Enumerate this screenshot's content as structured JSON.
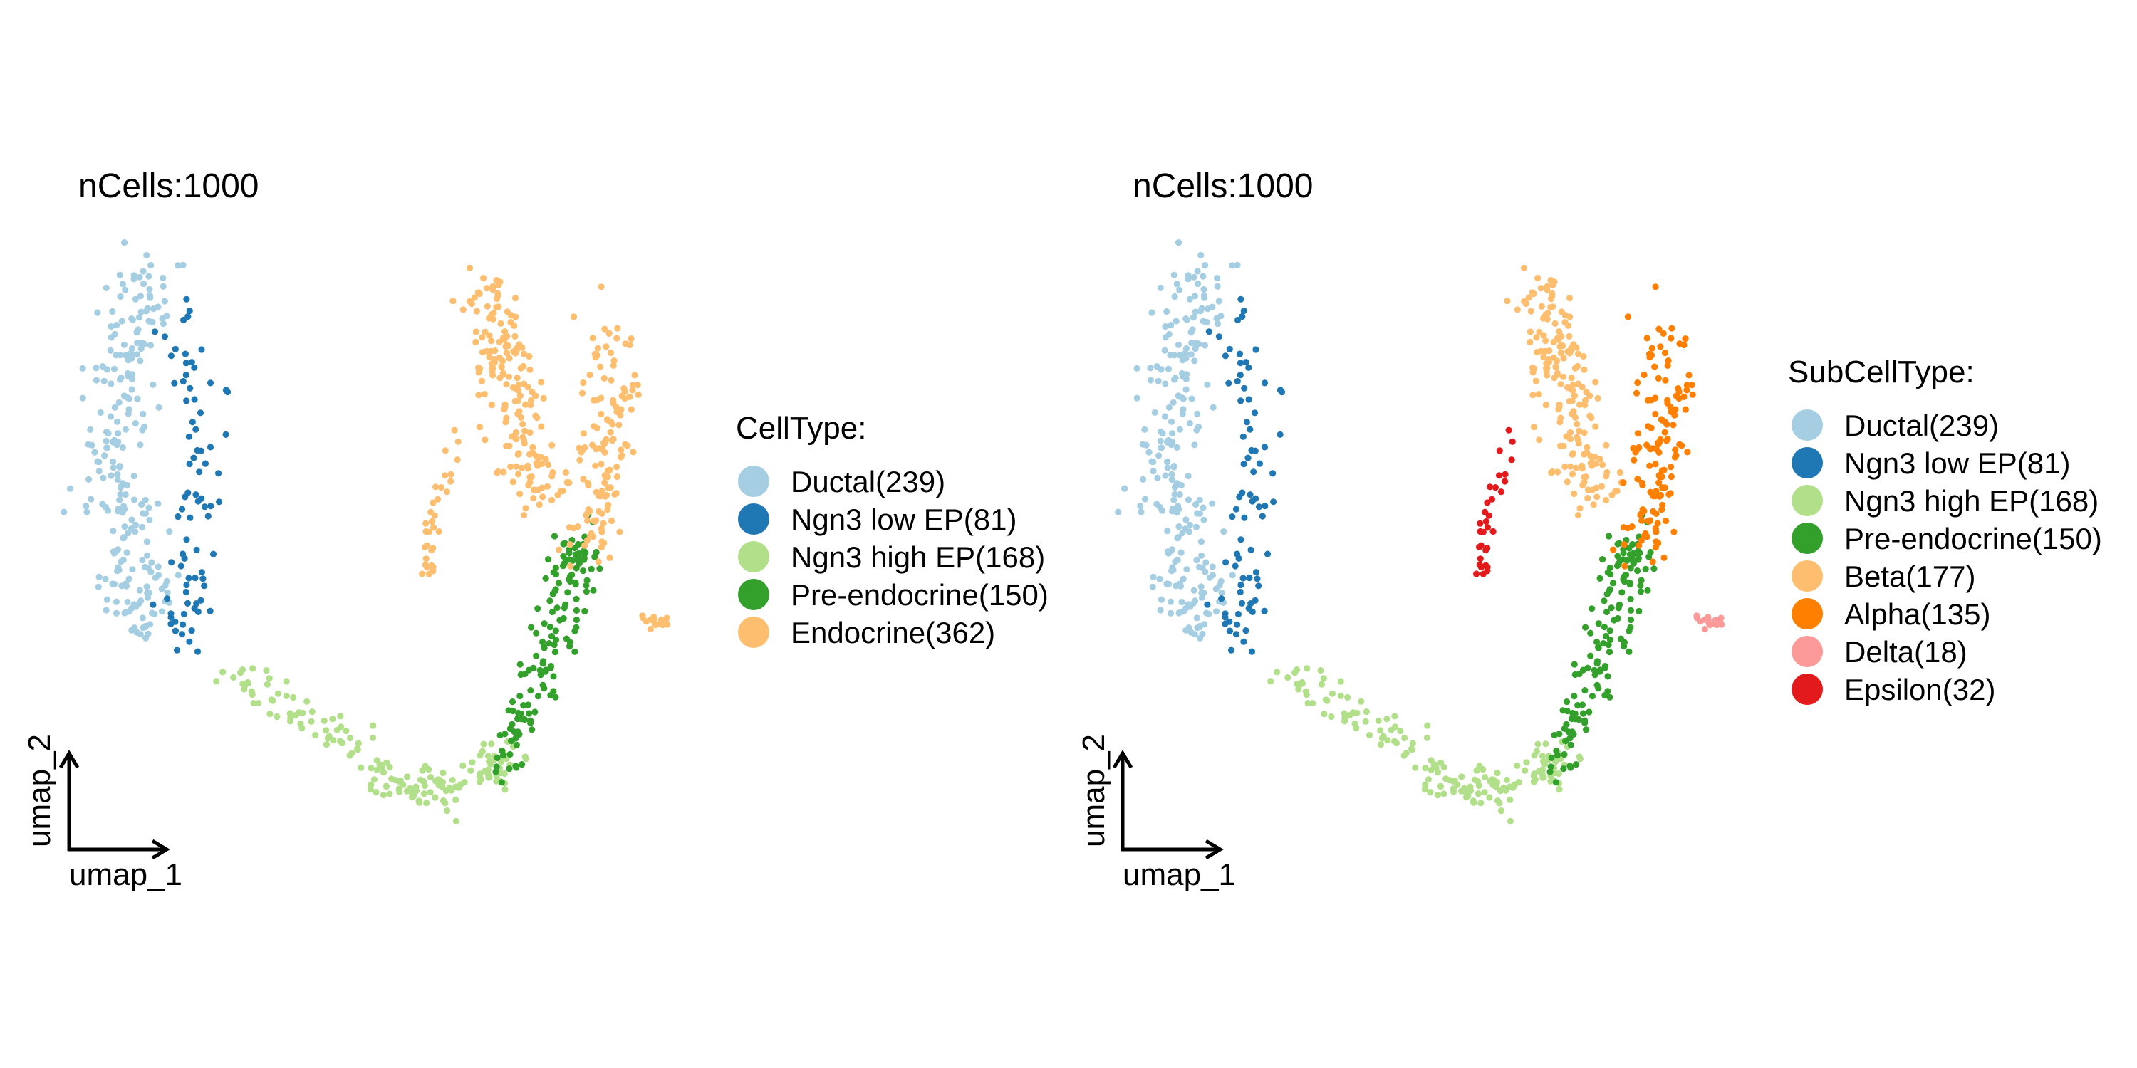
{
  "panels": [
    {
      "title": "nCells:1000",
      "xlabel": "umap_1",
      "ylabel": "umap_2",
      "legend_title": "CellType:",
      "legend": [
        {
          "label": "Ductal(239)",
          "color": "#a6cee3"
        },
        {
          "label": "Ngn3 low EP(81)",
          "color": "#1f78b4"
        },
        {
          "label": "Ngn3 high EP(168)",
          "color": "#b2df8a"
        },
        {
          "label": "Pre-endocrine(150)",
          "color": "#33a02c"
        },
        {
          "label": "Endocrine(362)",
          "color": "#fdbf6f"
        }
      ]
    },
    {
      "title": "nCells:1000",
      "xlabel": "umap_1",
      "ylabel": "umap_2",
      "legend_title": "SubCellType:",
      "legend": [
        {
          "label": "Ductal(239)",
          "color": "#a6cee3"
        },
        {
          "label": "Ngn3 low EP(81)",
          "color": "#1f78b4"
        },
        {
          "label": "Ngn3 high EP(168)",
          "color": "#b2df8a"
        },
        {
          "label": "Pre-endocrine(150)",
          "color": "#33a02c"
        },
        {
          "label": "Beta(177)",
          "color": "#fdbf6f"
        },
        {
          "label": "Alpha(135)",
          "color": "#ff7f00"
        },
        {
          "label": "Delta(18)",
          "color": "#fb9a99"
        },
        {
          "label": "Epsilon(32)",
          "color": "#e31a1c"
        }
      ]
    }
  ],
  "chart_data": [
    {
      "type": "scatter",
      "title": "nCells:1000",
      "xlabel": "umap_1",
      "ylabel": "umap_2",
      "color_by": "CellType",
      "n_cells": 1000,
      "grid": false,
      "axes": "arrows-only",
      "legend_placement": "right",
      "groups": [
        {
          "name": "Ductal",
          "count": 239,
          "color": "#a6cee3",
          "region": "left arm, upper"
        },
        {
          "name": "Ngn3 low EP",
          "count": 81,
          "color": "#1f78b4",
          "region": "left arm, mixed with Ductal, lower end"
        },
        {
          "name": "Ngn3 high EP",
          "count": 168,
          "color": "#b2df8a",
          "region": "bottom curve"
        },
        {
          "name": "Pre-endocrine",
          "count": 150,
          "color": "#33a02c",
          "region": "right arm, lower"
        },
        {
          "name": "Endocrine",
          "count": 362,
          "color": "#fdbf6f",
          "region": "right arm, upper"
        }
      ]
    },
    {
      "type": "scatter",
      "title": "nCells:1000",
      "xlabel": "umap_1",
      "ylabel": "umap_2",
      "color_by": "SubCellType",
      "n_cells": 1000,
      "grid": false,
      "axes": "arrows-only",
      "legend_placement": "right",
      "groups": [
        {
          "name": "Ductal",
          "count": 239,
          "color": "#a6cee3",
          "region": "left arm, upper"
        },
        {
          "name": "Ngn3 low EP",
          "count": 81,
          "color": "#1f78b4",
          "region": "left arm, mixed with Ductal, lower end"
        },
        {
          "name": "Ngn3 high EP",
          "count": 168,
          "color": "#b2df8a",
          "region": "bottom curve"
        },
        {
          "name": "Pre-endocrine",
          "count": 150,
          "color": "#33a02c",
          "region": "right arm, lower"
        },
        {
          "name": "Beta",
          "count": 177,
          "color": "#fdbf6f",
          "region": "right arm, upper-left"
        },
        {
          "name": "Alpha",
          "count": 135,
          "color": "#ff7f00",
          "region": "right arm, upper-right"
        },
        {
          "name": "Delta",
          "count": 18,
          "color": "#fb9a99",
          "region": "small cluster right of Pre-endocrine"
        },
        {
          "name": "Epsilon",
          "count": 32,
          "color": "#e31a1c",
          "region": "small cluster left of Beta"
        }
      ]
    }
  ]
}
